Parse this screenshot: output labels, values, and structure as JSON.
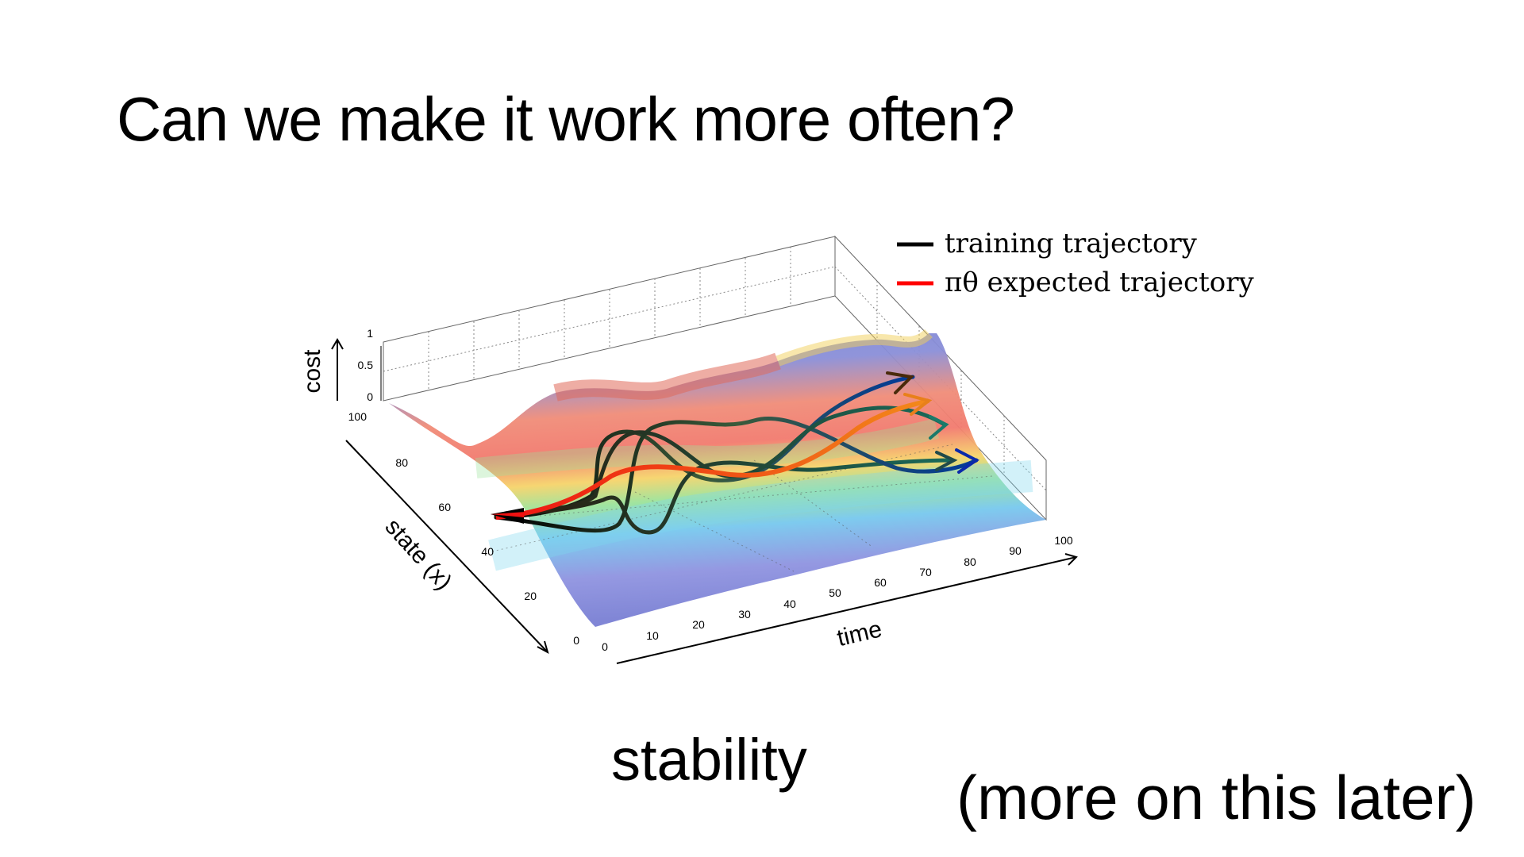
{
  "slide": {
    "title": "Can we make it work more often?",
    "caption": "stability",
    "note": "(more on this later)"
  },
  "figure": {
    "legend": [
      {
        "label": "training trajectory",
        "color": "#000000"
      },
      {
        "label": "πθ expected trajectory",
        "color": "#ff0000"
      }
    ],
    "axes": {
      "cost_label": "cost",
      "state_label": "state (x)",
      "time_label": "time",
      "cost_ticks": [
        "0",
        "0.5",
        "1"
      ],
      "state_ticks": [
        "0",
        "20",
        "40",
        "60",
        "80",
        "100"
      ],
      "time_ticks": [
        "0",
        "10",
        "20",
        "30",
        "40",
        "50",
        "60",
        "70",
        "80",
        "90",
        "100"
      ]
    },
    "colors": {
      "surface_low": "#7f86d6",
      "surface_high": "#f2746a",
      "trajectory_start": "#000000",
      "trajectory_end": "#0000cc"
    }
  }
}
